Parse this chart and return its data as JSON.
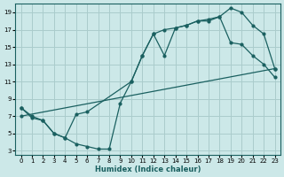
{
  "xlabel": "Humidex (Indice chaleur)",
  "bg_color": "#cce8e8",
  "grid_color": "#aacccc",
  "line_color": "#1a6060",
  "xlim": [
    -0.5,
    23.5
  ],
  "ylim": [
    2.5,
    20.0
  ],
  "xticks": [
    0,
    1,
    2,
    3,
    4,
    5,
    6,
    7,
    8,
    9,
    10,
    11,
    12,
    13,
    14,
    15,
    16,
    17,
    18,
    19,
    20,
    21,
    22,
    23
  ],
  "yticks": [
    3,
    5,
    7,
    9,
    11,
    13,
    15,
    17,
    19
  ],
  "line1_x": [
    0,
    1,
    2,
    3,
    4,
    5,
    6,
    10,
    11,
    12,
    13,
    14,
    15,
    16,
    17,
    18,
    19,
    20,
    21,
    22,
    23
  ],
  "line1_y": [
    8,
    7,
    6.5,
    5,
    4.5,
    7.2,
    7.5,
    11,
    14,
    16.5,
    17,
    17.2,
    17.5,
    18,
    18.2,
    18.5,
    19.5,
    19.0,
    17.5,
    16.5,
    12.5
  ],
  "line2_x": [
    0,
    23
  ],
  "line2_y": [
    7.0,
    12.5
  ],
  "line3_x": [
    0,
    1,
    2,
    3,
    4,
    5,
    6,
    7,
    8,
    9,
    10,
    11,
    12,
    13,
    14,
    15,
    16,
    17,
    18,
    19,
    20,
    21,
    22,
    23
  ],
  "line3_y": [
    8.0,
    6.8,
    6.5,
    5.0,
    4.5,
    3.8,
    3.5,
    3.2,
    3.2,
    8.5,
    11.0,
    14.0,
    16.5,
    14.0,
    17.2,
    17.5,
    18.0,
    18.0,
    18.5,
    15.5,
    15.3,
    14.0,
    13.0,
    11.5
  ]
}
